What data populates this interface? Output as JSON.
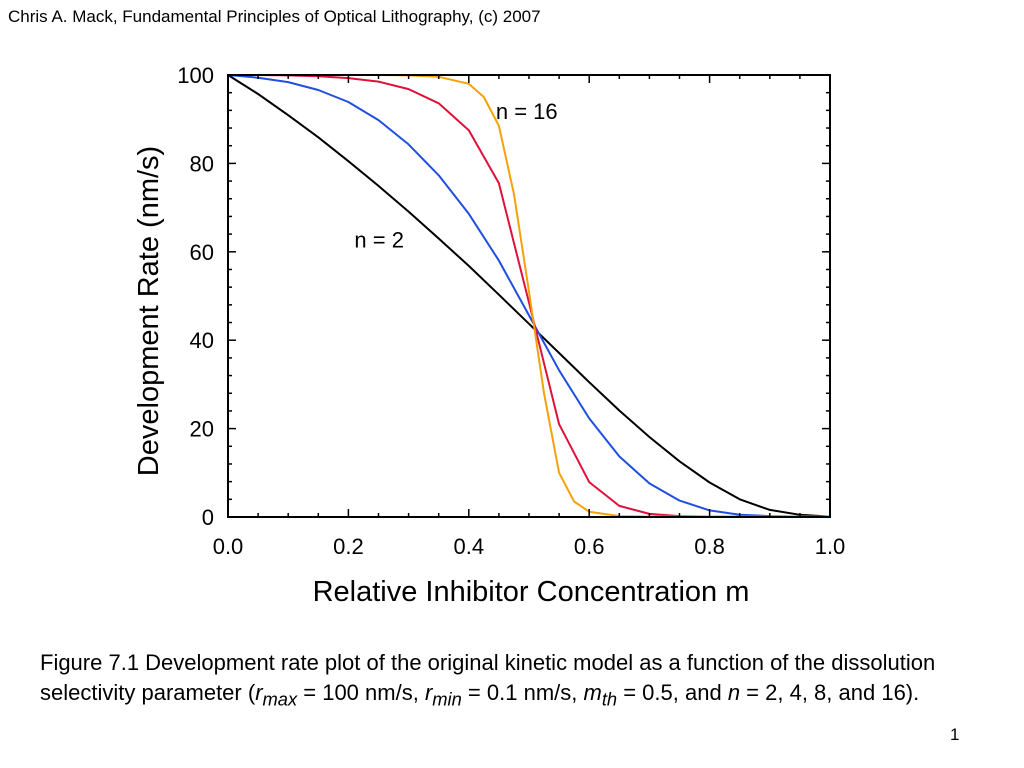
{
  "header": {
    "text": "Chris A. Mack, Fundamental Principles of Optical Lithography, (c) 2007"
  },
  "chart_data": {
    "type": "line",
    "title": "",
    "xlabel": "Relative Inhibitor Concentration m",
    "ylabel": "Development Rate (nm/s)",
    "xlim": [
      0,
      1
    ],
    "ylim": [
      0,
      100
    ],
    "xticks": [
      "0.0",
      "0.2",
      "0.4",
      "0.6",
      "0.8",
      "1.0"
    ],
    "yticks": [
      "0",
      "20",
      "40",
      "60",
      "80",
      "100"
    ],
    "grid": false,
    "series": [
      {
        "color": "#000000",
        "x": [
          0,
          0.05,
          0.1,
          0.15,
          0.2,
          0.25,
          0.3,
          0.35,
          0.4,
          0.45,
          0.5,
          0.55,
          0.6,
          0.65,
          0.7,
          0.75,
          0.8,
          0.85,
          0.9,
          0.95,
          1
        ],
        "y": [
          100,
          95.7,
          90.9,
          85.9,
          80.5,
          74.9,
          69.1,
          63.0,
          56.8,
          50.3,
          43.7,
          37.1,
          30.5,
          24.1,
          18.1,
          12.6,
          7.8,
          4.0,
          1.6,
          0.5,
          0.1
        ]
      },
      {
        "color": "#1f4fe0",
        "x": [
          0,
          0.05,
          0.1,
          0.15,
          0.2,
          0.25,
          0.3,
          0.35,
          0.4,
          0.45,
          0.5,
          0.55,
          0.6,
          0.65,
          0.7,
          0.75,
          0.8,
          0.85,
          0.9,
          0.95,
          1
        ],
        "y": [
          100,
          99.4,
          98.4,
          96.6,
          93.9,
          89.8,
          84.3,
          77.3,
          68.6,
          58.0,
          45.6,
          33.2,
          22.3,
          13.7,
          7.6,
          3.7,
          1.5,
          0.5,
          0.2,
          0.1,
          0.1
        ]
      },
      {
        "color": "#e0103a",
        "x": [
          0,
          0.05,
          0.1,
          0.15,
          0.2,
          0.25,
          0.3,
          0.35,
          0.4,
          0.45,
          0.5,
          0.55,
          0.6,
          0.65,
          0.7,
          0.75,
          0.8,
          0.85,
          0.9,
          0.95,
          1
        ],
        "y": [
          100,
          100,
          99.9,
          99.7,
          99.3,
          98.5,
          96.8,
          93.6,
          87.5,
          75.5,
          48.5,
          21.0,
          7.9,
          2.5,
          0.7,
          0.2,
          0.1,
          0.1,
          0.1,
          0.1,
          0.1
        ]
      },
      {
        "color": "#f5a20a",
        "x": [
          0,
          0.05,
          0.1,
          0.15,
          0.2,
          0.25,
          0.3,
          0.35,
          0.4,
          0.425,
          0.45,
          0.475,
          0.5,
          0.525,
          0.55,
          0.575,
          0.6,
          0.65,
          0.7,
          0.75,
          0.8,
          0.85,
          0.9,
          0.95,
          1
        ],
        "y": [
          100,
          100,
          100,
          100,
          100,
          100,
          99.9,
          99.6,
          98.0,
          95.0,
          88.5,
          73.0,
          51.0,
          28.0,
          10.0,
          3.5,
          1.2,
          0.2,
          0.1,
          0.1,
          0.1,
          0.1,
          0.1,
          0.1,
          0.1
        ]
      }
    ],
    "annotations": [
      {
        "text": "n = 16",
        "x": 0.445,
        "y": 90
      },
      {
        "text": "n = 2",
        "x": 0.21,
        "y": 61
      }
    ]
  },
  "caption": {
    "intro": "Figure 7.1  Development rate plot of the original kinetic model as a function of the dissolution selectivity parameter (",
    "var_r": "r",
    "sub_max": "max",
    "text_1": " = 100 nm/s, ",
    "sub_min": "min",
    "text_2": " = 0.1 nm/s, ",
    "var_m": "m",
    "sub_th": "th",
    "text_3": " = 0.5, and ",
    "var_n": "n",
    "text_4": " = 2, 4, 8, and 16)."
  },
  "page_number": "1"
}
